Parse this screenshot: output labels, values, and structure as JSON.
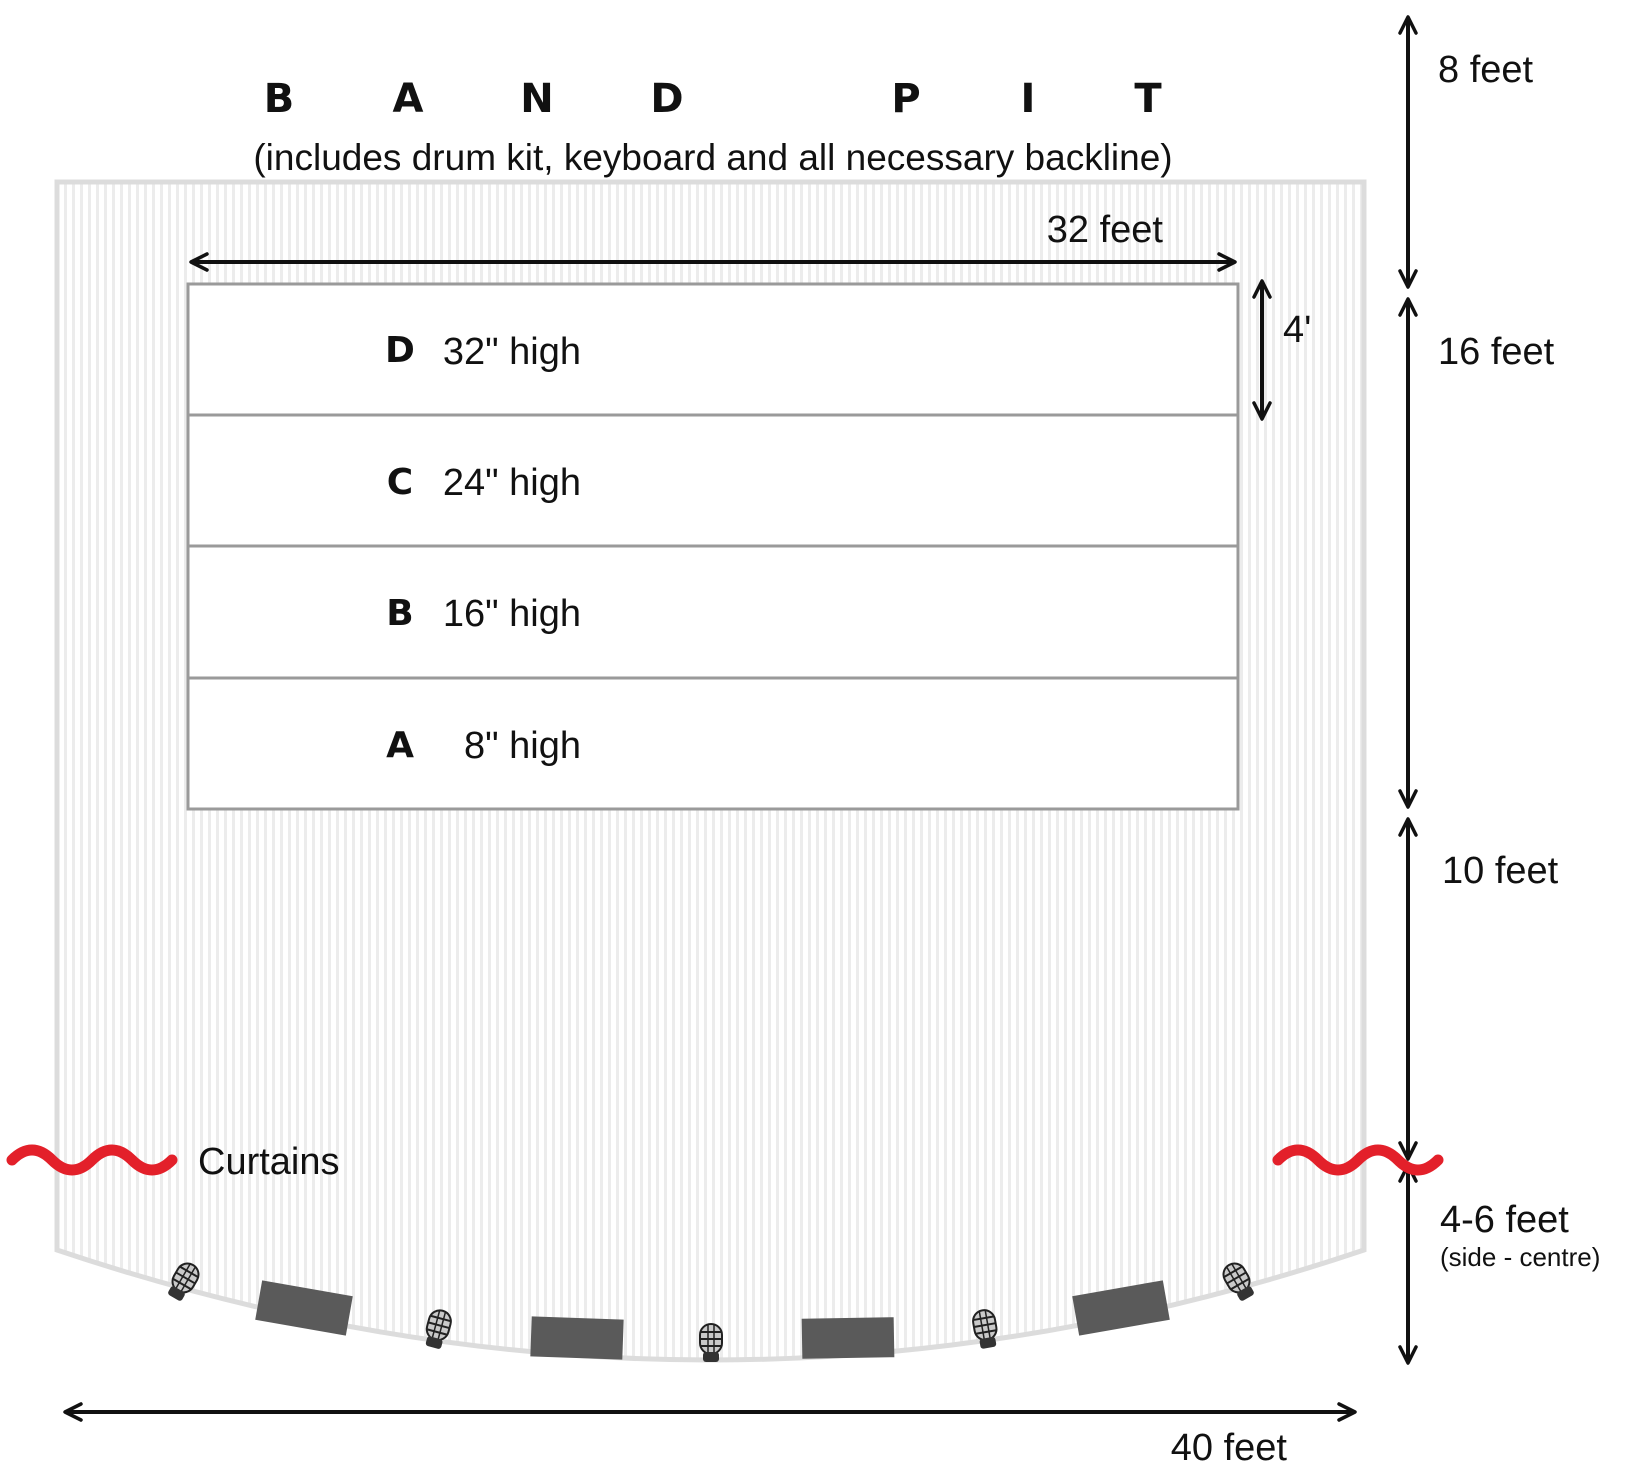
{
  "title_letters": [
    "B",
    "A",
    "N",
    "D",
    "P",
    "I",
    "T"
  ],
  "subtitle": "(includes drum kit, keyboard and all necessary backline)",
  "risers": [
    {
      "letter": "D",
      "height": "32\" high"
    },
    {
      "letter": "C",
      "height": "24\" high"
    },
    {
      "letter": "B",
      "height": "16\" high"
    },
    {
      "letter": "A",
      "height": "8\" high"
    }
  ],
  "dimensions": {
    "riser_width": "32 feet",
    "riser_depth": "4'",
    "back_depth": "8 feet",
    "riser_section": "16 feet",
    "front_section": "10 feet",
    "apron": "4-6 feet",
    "apron_note": "(side - centre)",
    "stage_width": "40 feet"
  },
  "curtains_label": "Curtains",
  "colors": {
    "curtain": "#e3202a",
    "monitor": "#5a5a5a",
    "outline": "#9a9a9a",
    "stage_border": "#dcdcdc"
  },
  "icons": {
    "microphone": "microphone-icon",
    "monitor": "floor-monitor-wedge"
  }
}
